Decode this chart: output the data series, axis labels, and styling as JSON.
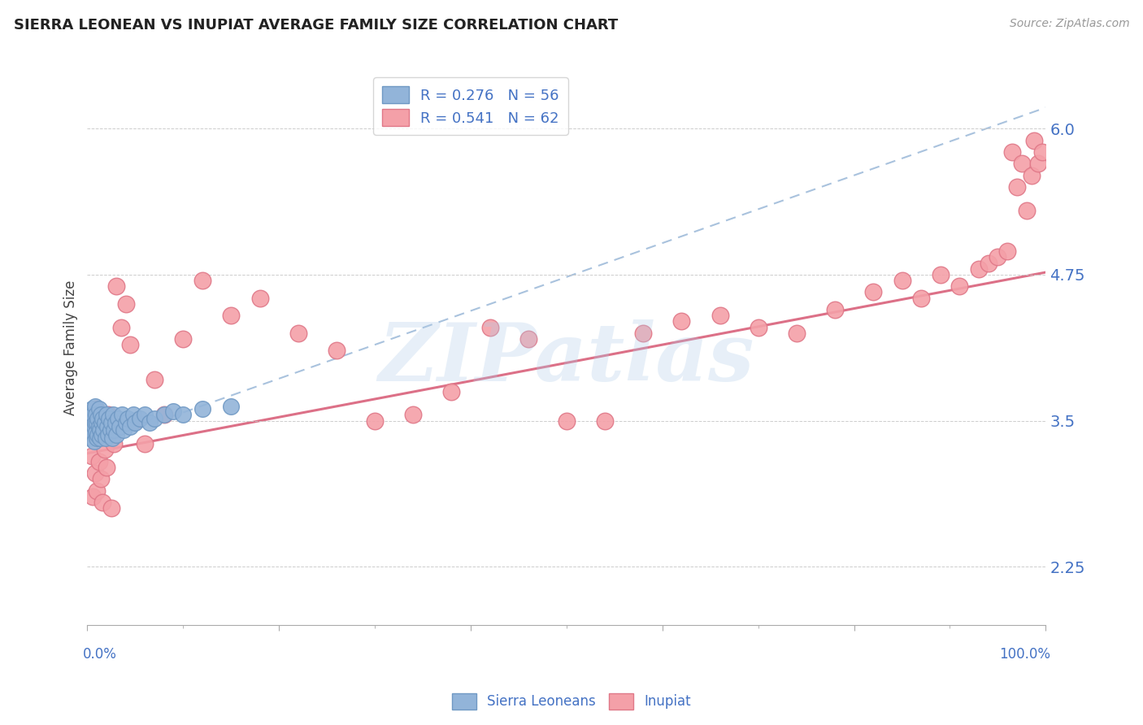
{
  "title": "SIERRA LEONEAN VS INUPIAT AVERAGE FAMILY SIZE CORRELATION CHART",
  "source": "Source: ZipAtlas.com",
  "ylabel": "Average Family Size",
  "xlim": [
    0,
    1
  ],
  "ylim": [
    1.75,
    6.5
  ],
  "yticks": [
    2.25,
    3.5,
    4.75,
    6.0
  ],
  "watermark": "ZIPatlas",
  "legend_text_blue": "R = 0.276   N = 56",
  "legend_text_pink": "R = 0.541   N = 62",
  "legend_label_blue": "Sierra Leoneans",
  "legend_label_pink": "Inupiat",
  "blue_scatter_color": "#92b4d9",
  "blue_scatter_edge": "#7099c4",
  "pink_scatter_color": "#f4a0a8",
  "pink_scatter_edge": "#e07888",
  "blue_line_color": "#9ab8d8",
  "pink_line_color": "#d9607a",
  "title_color": "#222222",
  "axis_color": "#4472c4",
  "background_color": "#ffffff",
  "grid_color": "#c8c8c8",
  "sierra_x": [
    0.003,
    0.004,
    0.005,
    0.005,
    0.006,
    0.006,
    0.007,
    0.007,
    0.008,
    0.008,
    0.009,
    0.009,
    0.01,
    0.01,
    0.011,
    0.011,
    0.012,
    0.012,
    0.013,
    0.013,
    0.014,
    0.015,
    0.015,
    0.016,
    0.017,
    0.018,
    0.019,
    0.02,
    0.021,
    0.022,
    0.023,
    0.024,
    0.025,
    0.026,
    0.027,
    0.028,
    0.029,
    0.03,
    0.032,
    0.034,
    0.036,
    0.038,
    0.04,
    0.042,
    0.045,
    0.048,
    0.05,
    0.055,
    0.06,
    0.065,
    0.07,
    0.08,
    0.09,
    0.1,
    0.12,
    0.15
  ],
  "sierra_y": [
    3.5,
    3.35,
    3.42,
    3.6,
    3.38,
    3.55,
    3.45,
    3.32,
    3.48,
    3.62,
    3.4,
    3.55,
    3.35,
    3.48,
    3.52,
    3.38,
    3.45,
    3.6,
    3.42,
    3.35,
    3.55,
    3.48,
    3.38,
    3.52,
    3.42,
    3.48,
    3.35,
    3.55,
    3.45,
    3.38,
    3.52,
    3.42,
    3.48,
    3.35,
    3.55,
    3.42,
    3.48,
    3.38,
    3.52,
    3.45,
    3.55,
    3.42,
    3.48,
    3.52,
    3.45,
    3.55,
    3.48,
    3.52,
    3.55,
    3.48,
    3.52,
    3.55,
    3.58,
    3.55,
    3.6,
    3.62
  ],
  "inupiat_x": [
    0.005,
    0.006,
    0.007,
    0.008,
    0.009,
    0.01,
    0.011,
    0.012,
    0.013,
    0.014,
    0.015,
    0.016,
    0.017,
    0.018,
    0.02,
    0.022,
    0.025,
    0.028,
    0.03,
    0.035,
    0.04,
    0.045,
    0.05,
    0.06,
    0.07,
    0.08,
    0.1,
    0.12,
    0.15,
    0.18,
    0.22,
    0.26,
    0.3,
    0.34,
    0.38,
    0.42,
    0.46,
    0.5,
    0.54,
    0.58,
    0.62,
    0.66,
    0.7,
    0.74,
    0.78,
    0.82,
    0.85,
    0.87,
    0.89,
    0.91,
    0.93,
    0.94,
    0.95,
    0.96,
    0.965,
    0.97,
    0.975,
    0.98,
    0.985,
    0.988,
    0.992,
    0.996
  ],
  "inupiat_y": [
    3.2,
    2.85,
    3.45,
    3.05,
    3.6,
    2.9,
    3.35,
    3.15,
    3.55,
    3.0,
    3.4,
    2.8,
    3.5,
    3.25,
    3.1,
    3.55,
    2.75,
    3.3,
    4.65,
    4.3,
    4.5,
    4.15,
    3.5,
    3.3,
    3.85,
    3.55,
    4.2,
    4.7,
    4.4,
    4.55,
    4.25,
    4.1,
    3.5,
    3.55,
    3.75,
    4.3,
    4.2,
    3.5,
    3.5,
    4.25,
    4.35,
    4.4,
    4.3,
    4.25,
    4.45,
    4.6,
    4.7,
    4.55,
    4.75,
    4.65,
    4.8,
    4.85,
    4.9,
    4.95,
    5.8,
    5.5,
    5.7,
    5.3,
    5.6,
    5.9,
    5.7,
    5.8
  ]
}
